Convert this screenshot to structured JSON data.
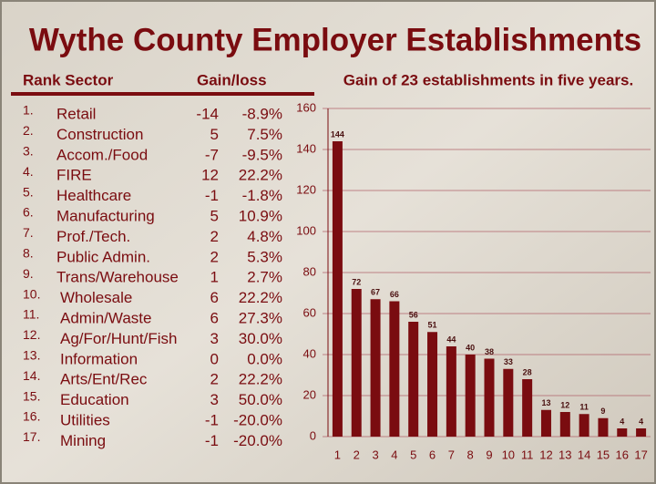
{
  "title": "Wythe County Employer Establishments",
  "table": {
    "header": [
      "Rank Sector",
      "Gain/loss"
    ],
    "rows": [
      [
        "1.",
        "Retail",
        "-14",
        "-8.9%"
      ],
      [
        "2.",
        "Construction",
        "5",
        "7.5%"
      ],
      [
        "3.",
        "Accom./Food",
        "-7",
        "-9.5%"
      ],
      [
        "4.",
        "FIRE",
        "12",
        "22.2%"
      ],
      [
        "5.",
        "Healthcare",
        "-1",
        "-1.8%"
      ],
      [
        "6.",
        "Manufacturing",
        "5",
        "10.9%"
      ],
      [
        "7.",
        "Prof./Tech.",
        "2",
        "4.8%"
      ],
      [
        "8.",
        "Public Admin.",
        "2",
        "5.3%"
      ],
      [
        "9.",
        "Trans/Warehouse",
        "1",
        "2.7%"
      ],
      [
        "10.",
        "Wholesale",
        "6",
        "22.2%"
      ],
      [
        "11.",
        "Admin/Waste",
        "6",
        "27.3%"
      ],
      [
        "12.",
        "Ag/For/Hunt/Fish",
        "3",
        "30.0%"
      ],
      [
        "13.",
        "Information",
        "0",
        "0.0%"
      ],
      [
        "14.",
        "Arts/Ent/Rec",
        "2",
        "22.2%"
      ],
      [
        "15.",
        "Education",
        "3",
        "50.0%"
      ],
      [
        "16.",
        "Utilities",
        "-1",
        "-20.0%"
      ],
      [
        "17.",
        "Mining",
        "-1",
        "-20.0%"
      ]
    ]
  },
  "chart_data": {
    "type": "bar",
    "title": "Gain of 23 establishments in five years.",
    "categories": [
      "1",
      "2",
      "3",
      "4",
      "5",
      "6",
      "7",
      "8",
      "9",
      "10",
      "11",
      "12",
      "13",
      "14",
      "15",
      "16",
      "17"
    ],
    "values": [
      144,
      72,
      67,
      66,
      56,
      51,
      44,
      40,
      38,
      33,
      28,
      13,
      12,
      11,
      9,
      4,
      4
    ],
    "color": "#7a0c10",
    "ylim": [
      0,
      160
    ],
    "yticks": [
      0,
      20,
      40,
      60,
      80,
      100,
      120,
      140,
      160
    ],
    "grid": true
  }
}
